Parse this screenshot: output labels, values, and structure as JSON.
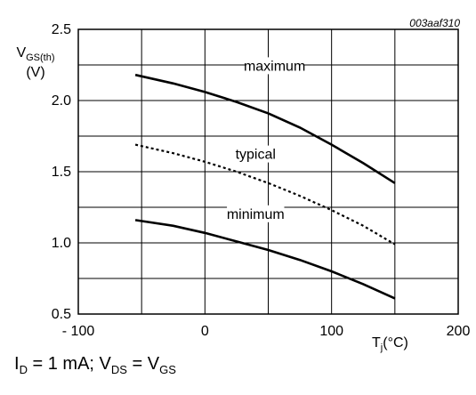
{
  "chart_data": {
    "type": "line",
    "figure_code": "003aaf310",
    "ylabel": {
      "main": "V",
      "sub": "GS(th)",
      "unit": "(V)"
    },
    "xlabel": {
      "main": "T",
      "sub": "j",
      "unit": "(°C)"
    },
    "xlim": [
      -100,
      200
    ],
    "ylim": [
      0.5,
      2.5
    ],
    "x_ticks": [
      -100,
      0,
      100,
      200
    ],
    "x_tick_labels": [
      "- 100",
      "0",
      "100",
      "200"
    ],
    "y_ticks": [
      0.5,
      1.0,
      1.5,
      2.0,
      2.5
    ],
    "y_tick_labels": [
      "0.5",
      "1.0",
      "1.5",
      "2.0",
      "2.5"
    ],
    "grid": true,
    "series": [
      {
        "name": "maximum",
        "style": "solid",
        "x": [
          -55,
          -25,
          0,
          25,
          50,
          75,
          100,
          125,
          150
        ],
        "y": [
          2.18,
          2.12,
          2.06,
          1.99,
          1.91,
          1.81,
          1.69,
          1.56,
          1.42
        ]
      },
      {
        "name": "typical",
        "style": "dotted",
        "x": [
          -55,
          -25,
          0,
          25,
          50,
          75,
          100,
          125,
          150
        ],
        "y": [
          1.69,
          1.63,
          1.57,
          1.5,
          1.42,
          1.33,
          1.23,
          1.12,
          0.99
        ]
      },
      {
        "name": "minimum",
        "style": "solid",
        "x": [
          -55,
          -25,
          0,
          25,
          50,
          75,
          100,
          125,
          150
        ],
        "y": [
          1.16,
          1.12,
          1.07,
          1.01,
          0.95,
          0.88,
          0.8,
          0.71,
          0.61
        ]
      }
    ]
  },
  "caption": {
    "i": "I",
    "i_sub": "D",
    "eq1": " = 1 mA; ",
    "v1": "V",
    "v1_sub": "DS",
    "eq2": " = ",
    "v2": "V",
    "v2_sub": "GS"
  }
}
